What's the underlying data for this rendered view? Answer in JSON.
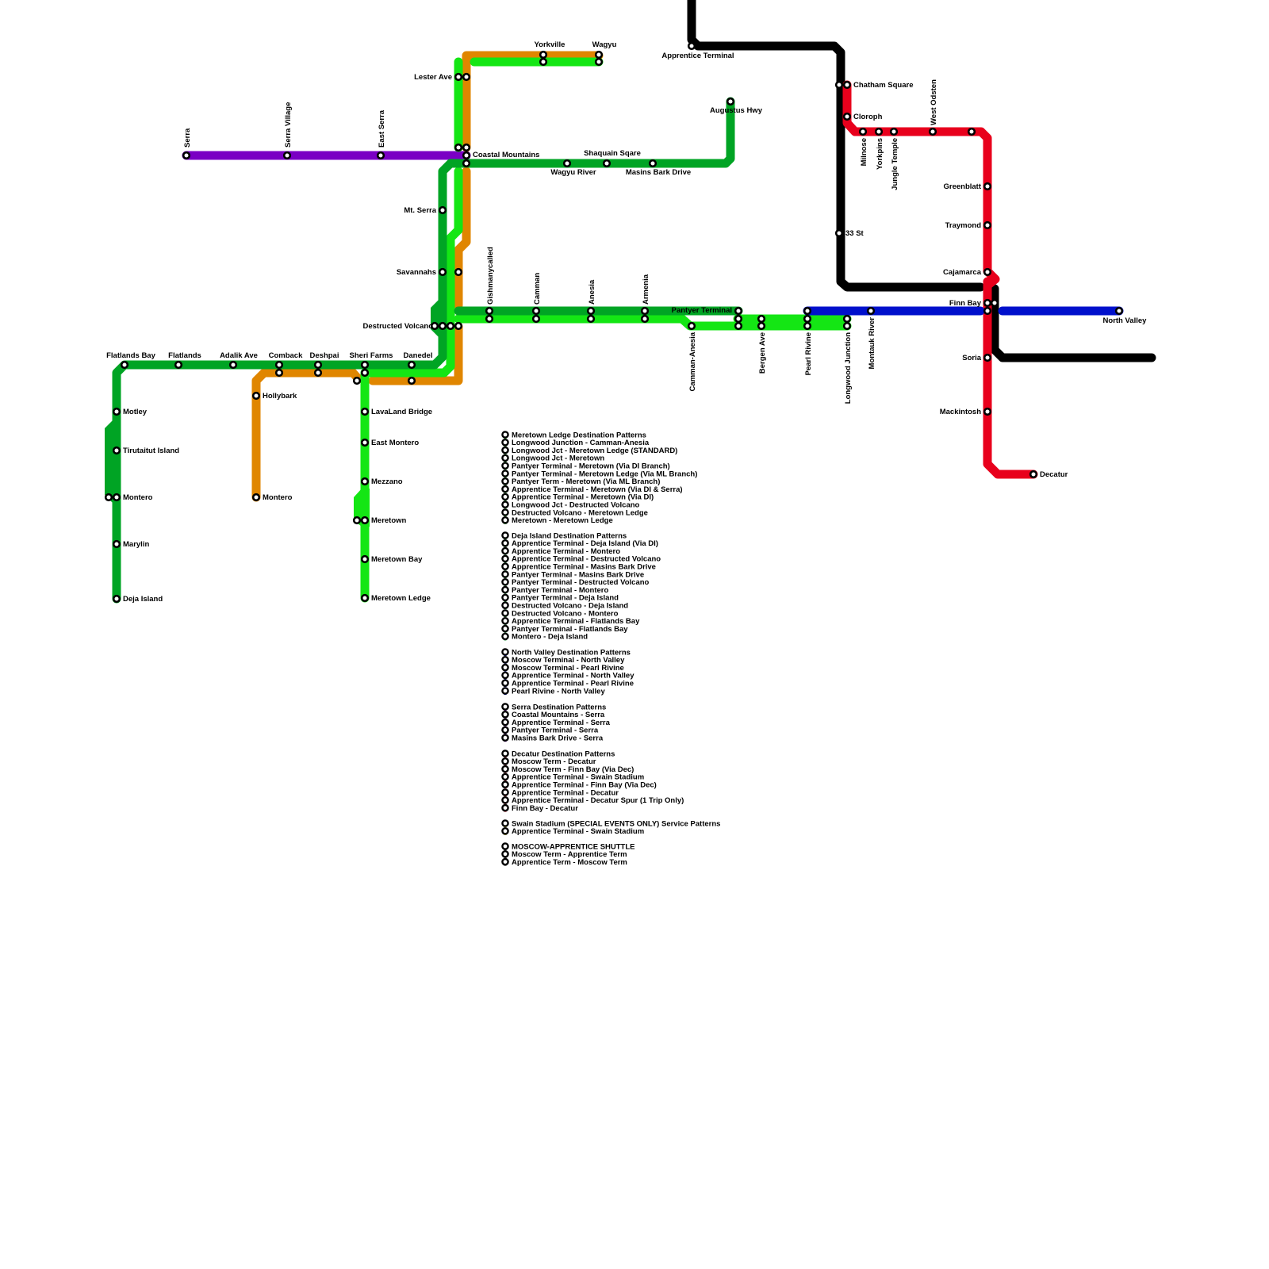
{
  "colors": {
    "dark_green": "#00a424",
    "bright_green": "#14e614",
    "orange": "#e08600",
    "purple": "#7a00c4",
    "red": "#e8001c",
    "black": "#000000",
    "blue": "#0010cc"
  },
  "stations": {
    "serra": "Serra",
    "serra_village": "Serra Village",
    "east_serra": "East Serra",
    "lester_ave": "Lester Ave",
    "yorkville": "Yorkville",
    "wagyu": "Wagyu",
    "coastal_mountains": "Coastal Mountains",
    "wagyu_river": "Wagyu River",
    "shaquain_sqare": "Shaquain Sqare",
    "masins_bark_drive": "Masins Bark Drive",
    "augustus_hwy": "Augustus Hwy",
    "apprentice_terminal": "Apprentice Terminal",
    "mt_serra": "Mt. Serra",
    "savannahs": "Savannahs",
    "destructed_volcano": "Destructed Volcano",
    "gishmanycalled": "Gishmanycalled",
    "camman": "Camman",
    "anesia": "Anesia",
    "armenia": "Armenia",
    "pantyer_terminal": "Pantyer Terminal",
    "camman_anesia": "Camman-Anesia",
    "bergen_ave": "Bergen Ave",
    "pearl_rivine": "Pearl Rivine",
    "longwood_junction": "Longwood Junction",
    "montauk_river": "Montauk River",
    "north_valley": "North Valley",
    "chatham_square": "Chatham Square",
    "cloroph": "Cloroph",
    "milnose": "Milnose",
    "yorkpins": "Yorkpins",
    "jungle_temple": "Jungle Temple",
    "west_odsten": "West Odsten",
    "greenblatt": "Greenblatt",
    "traymond": "Traymond",
    "cajamarca": "Cajamarca",
    "finn_bay": "Finn Bay",
    "soria": "Soria",
    "mackintosh": "Mackintosh",
    "decatur": "Decatur",
    "st33": "33 St",
    "flatlands_bay": "Flatlands Bay",
    "flatlands": "Flatlands",
    "adalik_ave": "Adalik Ave",
    "comback": "Comback",
    "deshpai": "Deshpai",
    "sheri_farms": "Sheri Farms",
    "danedel": "Danedel",
    "hollybark": "Hollybark",
    "montero_orange": "Montero",
    "motley": "Motley",
    "tirutaitut_island": "Tirutaitut Island",
    "montero": "Montero",
    "marylin": "Marylin",
    "deja_island": "Deja Island",
    "lavaland_bridge": "LavaLand Bridge",
    "east_montero": "East Montero",
    "mezzano": "Mezzano",
    "meretown": "Meretown",
    "meretown_bay": "Meretown Bay",
    "meretown_ledge": "Meretown Ledge"
  },
  "legend": [
    {
      "color": "#14e614",
      "items": [
        "Meretown Ledge Destination Patterns",
        "Longwood Junction - Camman-Anesia",
        "Longwood Jct - Meretown Ledge (STANDARD)",
        "Longwood Jct - Meretown",
        "Pantyer Terminal - Meretown (Via DI Branch)",
        "Pantyer Terminal - Meretown Ledge (Via ML Branch)",
        "Pantyer Term - Meretown (Via ML Branch)",
        "Apprentice Terminal - Meretown (Via DI & Serra)",
        "Apprentice Terminal - Meretown (Via DI)",
        "Longwood Jct - Destructed Volcano",
        "Destructed Volcano - Meretown Ledge",
        "Meretown - Meretown Ledge"
      ]
    },
    {
      "color": "#00a424",
      "items": [
        "Deja Island Destination Patterns",
        "Apprentice Terminal - Deja Island (Via DI)",
        "Apprentice Terminal - Montero",
        "Apprentice Terminal - Destructed Volcano",
        "Apprentice Terminal - Masins Bark Drive",
        "Pantyer Terminal - Masins Bark Drive",
        "Pantyer Terminal - Destructed Volcano",
        "Pantyer Terminal - Montero",
        "Pantyer Terminal - Deja Island",
        "Destructed Volcano - Deja Island",
        "Destructed Volcano - Montero",
        "Apprentice Terminal - Flatlands Bay",
        "Pantyer Terminal - Flatlands Bay",
        "Montero - Deja Island"
      ]
    },
    {
      "color": "#0010cc",
      "items": [
        "North Valley Destination Patterns",
        "Moscow Terminal - North Valley",
        "Moscow Terminal - Pearl Rivine",
        "Apprentice Terminal - North Valley",
        "Apprentice Terminal - Pearl Rivine",
        "Pearl Rivine - North Valley"
      ]
    },
    {
      "color": "#7a00c4",
      "items": [
        "Serra Destination Patterns",
        "Coastal Mountains - Serra",
        "Apprentice Terminal - Serra",
        "Pantyer Terminal - Serra",
        "Masins Bark Drive - Serra"
      ]
    },
    {
      "color": "#e8001c",
      "items": [
        "Decatur Destination Patterns",
        "Moscow Term - Decatur",
        "Moscow Term - Finn Bay (Via Dec)",
        "Apprentice Terminal - Swain Stadium",
        "Apprentice Terminal - Finn Bay (Via Dec)",
        "Apprentice Terminal - Decatur",
        "Apprentice Terminal - Decatur Spur (1 Trip Only)",
        "Finn Bay - Decatur"
      ]
    },
    {
      "color": "#e0e000",
      "items": [
        "Swain Stadium (SPECIAL EVENTS ONLY) Service Patterns",
        "Apprentice Terminal - Swain Stadium"
      ]
    },
    {
      "color": "#000000",
      "items": [
        "MOSCOW-APPRENTICE SHUTTLE",
        "Moscow Term - Apprentice Term",
        "Apprentice Term - Moscow Term"
      ]
    }
  ]
}
